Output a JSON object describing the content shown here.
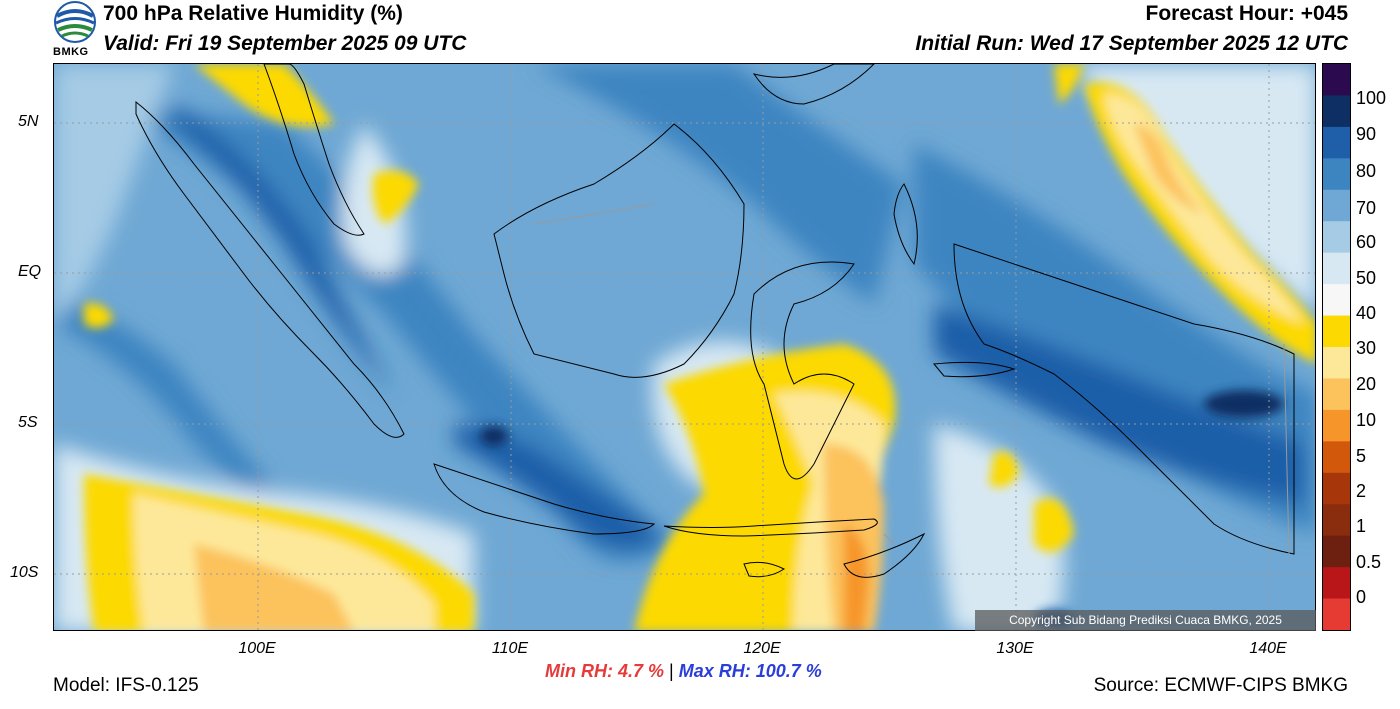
{
  "header": {
    "title": "700 hPa Relative Humidity (%)",
    "valid": "Valid: Fri 19 September 2025 09 UTC",
    "forecast_hour": "Forecast Hour: +045",
    "initial_run": "Initial Run: Wed 17 September 2025 12 UTC",
    "logo_text": "BMKG"
  },
  "axes": {
    "y_ticks": [
      "5N",
      "EQ",
      "5S",
      "10S"
    ],
    "x_ticks": [
      "100E",
      "110E",
      "120E",
      "130E",
      "140E"
    ]
  },
  "colorbar": {
    "labels": [
      "100",
      "90",
      "80",
      "70",
      "60",
      "50",
      "40",
      "30",
      "20",
      "10",
      "5",
      "2",
      "1",
      "0.5",
      "0"
    ],
    "colors": [
      "#2b0a4f",
      "#0d2f63",
      "#1f5fa9",
      "#3d85c1",
      "#6fa8d4",
      "#a5cbe5",
      "#d7e8f3",
      "#f7f7f7",
      "#fcd900",
      "#fde89a",
      "#fcc25c",
      "#f6962a",
      "#d2590c",
      "#a7360a",
      "#8a2d0f",
      "#6d1f10",
      "#b9161a",
      "#e63b32"
    ]
  },
  "stats": {
    "min_rh": "Min RH:   4.7 %",
    "separator": "|",
    "max_rh": "Max RH: 100.7 %"
  },
  "footer": {
    "model": "Model: IFS-0.125",
    "source": "Source: ECMWF-CIPS BMKG",
    "copyright": "Copyright Sub Bidang Prediksi Cuaca BMKG, 2025"
  },
  "palette": {
    "very_humid": "#1f5fa9",
    "humid": "#3d85c1",
    "moist": "#6fa8d4",
    "light_moist": "#a5cbe5",
    "pale": "#d7e8f3",
    "neutral": "#f7f7f7",
    "dry_yellow": "#fcd900",
    "dry_light": "#fde89a",
    "dry_orange": "#fcc25c",
    "very_dry": "#f6962a",
    "coast_line": "#000000",
    "border_line": "#9a9a9a"
  }
}
